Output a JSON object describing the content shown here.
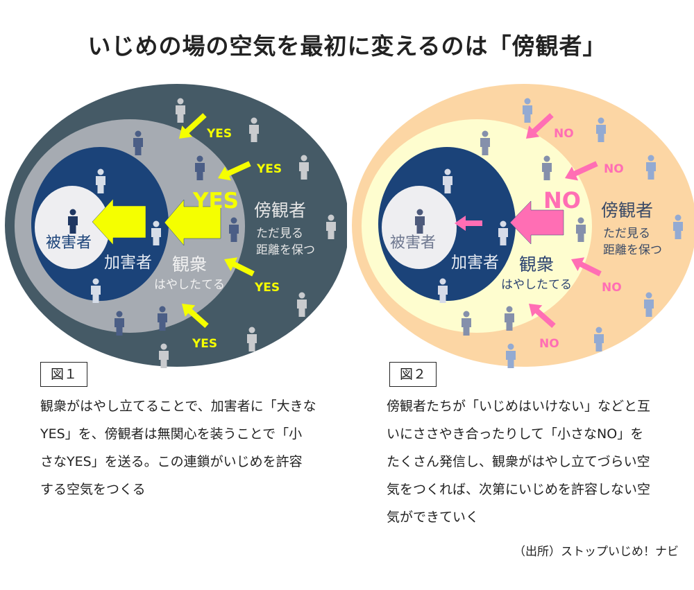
{
  "title": "いじめの場の空気を最初に変えるのは「傍観者」",
  "diagrams": [
    {
      "colors": {
        "outer": "#455a66",
        "middle": "#a6abb2",
        "inner": "#1b4379",
        "victim": "#eeeef1",
        "arrow": "#f5ff00",
        "fig_outer": "#c9cbce",
        "fig_middle": "#4b5e86",
        "fig_inner": "#d6dde8",
        "fig_victim": "#1f3762",
        "label_victim": "#1b4379",
        "label_inner": "#e8ecf3",
        "label_middle": "#f2f2f2",
        "label_outer": "#e6e6e6"
      },
      "victim_label": "被害者",
      "perpetrator_label": "加害者",
      "audience_label": "観衆",
      "audience_sub": "はやしたてる",
      "bystander_label": "傍観者",
      "bystander_sub1": "ただ見る",
      "bystander_sub2": "距離を保つ",
      "big_signal": "YES",
      "small_signal": "YES",
      "caption": "図１",
      "description": [
        "観衆がはやし立てることで、加害者に「大きな",
        "YES」を、傍観者は無関心を装うことで「小",
        "さなYES」を送る。この連鎖がいじめを許容",
        "する空気をつくる"
      ]
    },
    {
      "colors": {
        "outer": "#fcd6a4",
        "middle": "#fefdcf",
        "inner": "#1b4379",
        "victim": "#eeeef1",
        "arrow": "#ff6eb4",
        "fig_outer": "#93aad2",
        "fig_middle": "#8590ab",
        "fig_inner": "#d6dbe8",
        "fig_victim": "#4d5a7b",
        "label_victim": "#6f7890",
        "label_inner": "#e8ecf3",
        "label_middle": "#2b4270",
        "label_outer": "#3a4a66"
      },
      "victim_label": "被害者",
      "perpetrator_label": "加害者",
      "audience_label": "観衆",
      "audience_sub": "はやしたてる",
      "bystander_label": "傍観者",
      "bystander_sub1": "ただ見る",
      "bystander_sub2": "距離を保つ",
      "big_signal": "NO",
      "small_signal": "NO",
      "caption": "図２",
      "description": [
        "傍観者たちが「いじめはいけない」などと互",
        "いにささやき合ったりして「小さなNO」を",
        "たくさん発信し、観衆がはやし立てづらい空",
        "気をつくれば、次第にいじめを許容しない空",
        "気ができていく"
      ]
    }
  ],
  "source": "（出所）ストップいじめ！ナビ"
}
